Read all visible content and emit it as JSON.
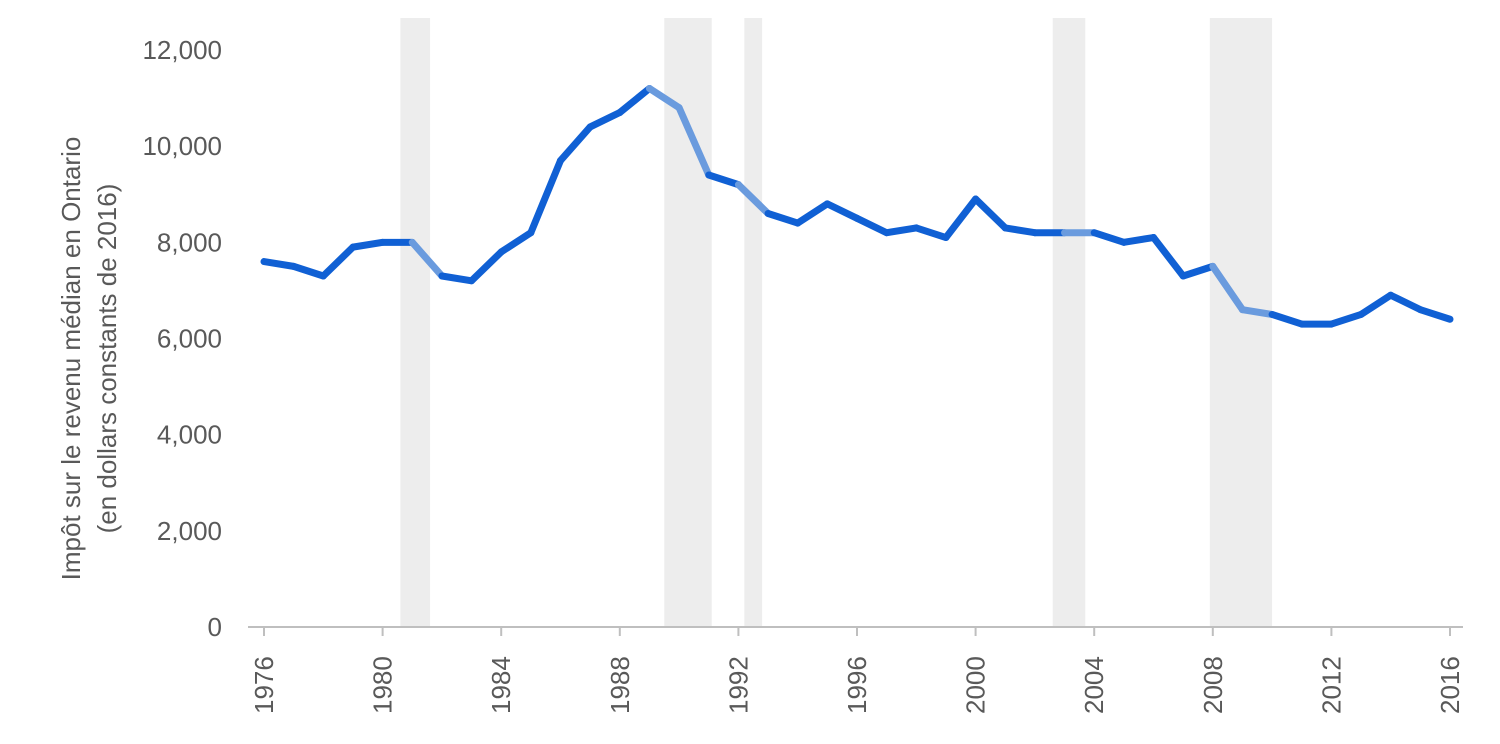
{
  "chart_data": {
    "type": "line",
    "title": "",
    "xlabel": "",
    "ylabel_lines": [
      "Impôt sur le revenu médian en Ontario",
      "(en dollars constants de 2016)"
    ],
    "ylim": [
      0,
      12000
    ],
    "yticks": [
      0,
      2000,
      4000,
      6000,
      8000,
      10000,
      12000
    ],
    "ytick_labels": [
      "0",
      "2,000",
      "4,000",
      "6,000",
      "8,000",
      "10,000",
      "12,000"
    ],
    "xlim": [
      1976,
      2016
    ],
    "xticks": [
      1976,
      1980,
      1984,
      1988,
      1992,
      1996,
      2000,
      2004,
      2008,
      2012,
      2016
    ],
    "xtick_labels": [
      "1976",
      "1980",
      "1984",
      "1988",
      "1992",
      "1996",
      "2000",
      "2004",
      "2008",
      "2012",
      "2016"
    ],
    "grid": false,
    "legend": "none",
    "shaded_periods": [
      {
        "start": 1980.6,
        "end": 1981.6
      },
      {
        "start": 1989.5,
        "end": 1991.1
      },
      {
        "start": 1992.2,
        "end": 1992.8
      },
      {
        "start": 2002.6,
        "end": 2003.7
      },
      {
        "start": 2007.9,
        "end": 2010.0
      }
    ],
    "series": [
      {
        "x": [
          1976,
          1977,
          1978,
          1979,
          1980,
          1981,
          1982,
          1983,
          1984,
          1985,
          1986,
          1987,
          1988,
          1989,
          1990,
          1991,
          1992,
          1993,
          1994,
          1995,
          1996,
          1997,
          1998,
          1999,
          2000,
          2001,
          2002,
          2003,
          2004,
          2005,
          2006,
          2007,
          2008,
          2009,
          2010,
          2011,
          2012,
          2013,
          2014,
          2015,
          2016
        ],
        "values": [
          7600,
          7500,
          7300,
          7900,
          8000,
          8000,
          7300,
          7200,
          7800,
          8200,
          9700,
          10400,
          10700,
          11200,
          10800,
          9400,
          9200,
          8600,
          8400,
          8800,
          8500,
          8200,
          8300,
          8100,
          8900,
          8300,
          8200,
          8200,
          8200,
          8000,
          8100,
          7300,
          7500,
          6600,
          6500,
          6300,
          6300,
          6500,
          6900,
          6600,
          6400
        ],
        "color": "#1060D4",
        "highlight_color": "#6A9BDE"
      }
    ],
    "colors": {
      "shade": "#EDEDED",
      "axis": "#BFBFBF",
      "text": "#595959"
    }
  }
}
